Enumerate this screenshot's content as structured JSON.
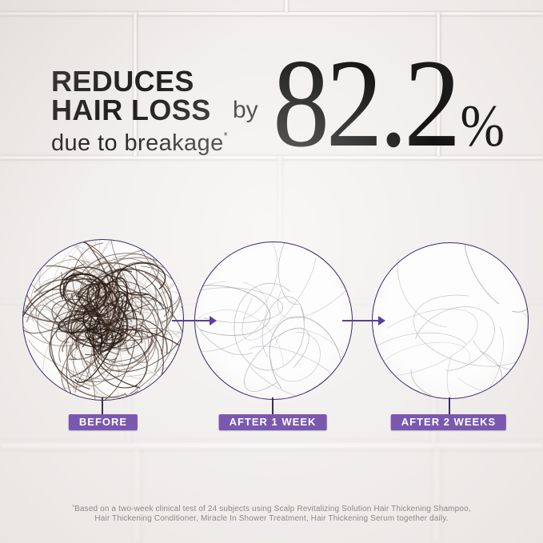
{
  "headline": {
    "line1": "REDUCES",
    "line2": "HAIR LOSS",
    "subline": "due to breakage",
    "subline_asterisk": "*",
    "connector": "by",
    "stat_value": "82.2",
    "stat_unit": "%"
  },
  "stages": [
    {
      "label": "BEFORE"
    },
    {
      "label": "AFTER 1 WEEK"
    },
    {
      "label": "AFTER 2 WEEKS"
    }
  ],
  "footnote": {
    "asterisk": "*",
    "line1": "Based on a two-week clinical test of 24 subjects using Scalp Revitalizing Solution Hair Thickening Shampoo,",
    "line2": "Hair Thickening Conditioner, Miracle In Shower Treatment, Hair Thickening Serum together daily."
  },
  "colors": {
    "background": "#f2f0ee",
    "text_black": "#1a1a1a",
    "badge_purple": "#7a58ae",
    "arrow_purple": "#5b3f99",
    "circle_border": "#3a2a66",
    "footnote_gray": "#8d8a86"
  }
}
